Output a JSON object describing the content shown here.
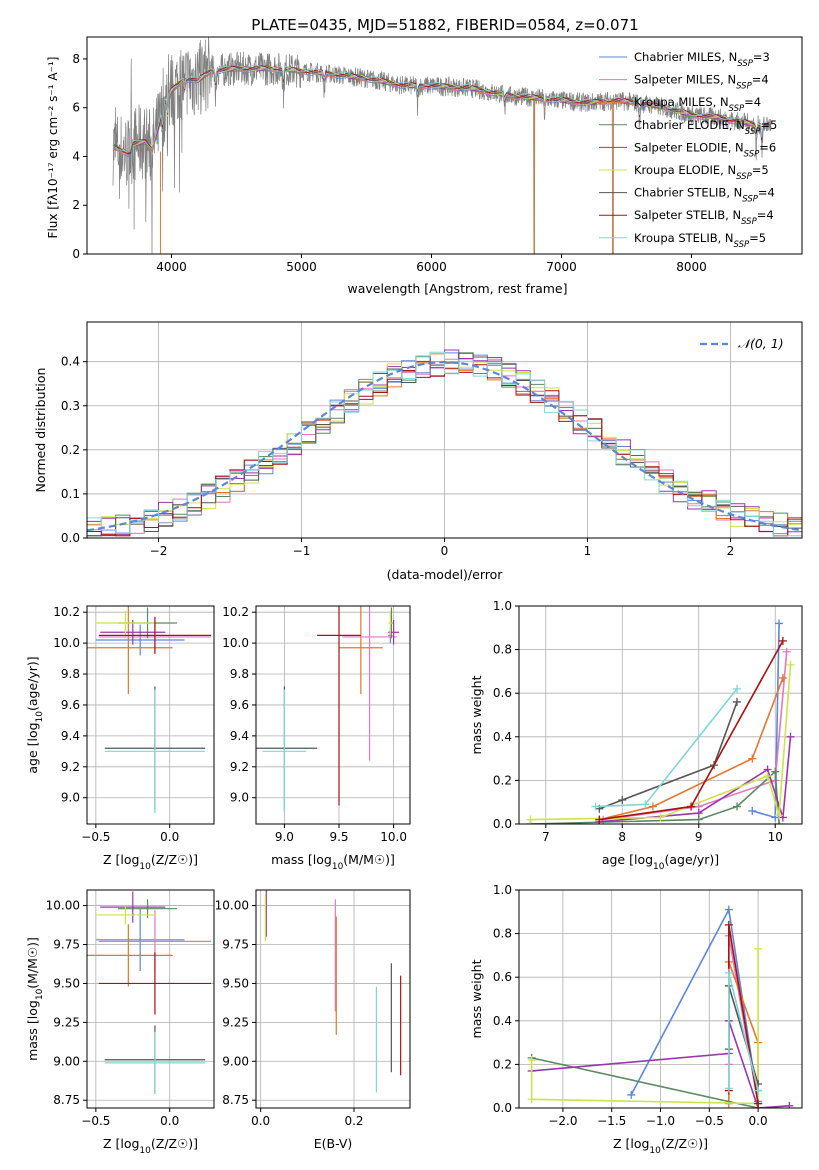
{
  "figure": {
    "title": "PLATE=0435, MJD=51882, FIBERID=0584, z=0.071"
  },
  "colors": {
    "chabrier_miles": "#5b86dc",
    "salpeter_miles": "#e377c2",
    "kroupa_miles": "#e6762a",
    "chabrier_elodie": "#5a8a60",
    "salpeter_elodie": "#9a36ad",
    "kroupa_elodie": "#cce34c",
    "chabrier_stelib": "#555555",
    "salpeter_stelib": "#aa1111",
    "kroupa_stelib": "#80d6d6",
    "data_spectrum": "#808080",
    "normal_curve": "#5b86dc",
    "grid": "#b0b0b0"
  },
  "chart_data": [
    {
      "id": "spectrum",
      "type": "line",
      "title": "PLATE=0435, MJD=51882, FIBERID=0584, z=0.071",
      "xlabel": "wavelength [Angstrom, rest frame]",
      "ylabel": "Flux [fλ10⁻¹⁷ erg cm⁻² s⁻¹ A⁻¹]",
      "xlim": [
        3350,
        8850
      ],
      "ylim": [
        0,
        8.9
      ],
      "xticks": [
        4000,
        5000,
        6000,
        7000,
        8000
      ],
      "yticks": [
        0,
        2,
        4,
        6,
        8
      ],
      "grid": false,
      "legend_position": "right",
      "continuum_x": [
        3550,
        3600,
        3680,
        3700,
        3800,
        3850,
        3900,
        3950,
        4000,
        4100,
        4200,
        4300,
        4500,
        4800,
        5000,
        5200,
        5500,
        5800,
        6000,
        6300,
        6600,
        6800,
        7000,
        7200,
        7400,
        7600,
        7800,
        8000,
        8200,
        8400,
        8500,
        8600
      ],
      "continuum_y": [
        4.4,
        4.3,
        4.1,
        4.5,
        4.6,
        4.3,
        5.2,
        6.2,
        6.7,
        7.2,
        7.1,
        7.5,
        7.6,
        7.6,
        7.5,
        7.4,
        7.2,
        6.9,
        6.9,
        6.8,
        6.5,
        6.4,
        6.3,
        6.2,
        6.3,
        6.2,
        6.0,
        5.7,
        5.6,
        5.4,
        5.3,
        5.3
      ],
      "series": [
        {
          "name": "Chabrier MILES, N_SSP=3",
          "label_main": "Chabrier MILES, N",
          "label_sub": "SSP",
          "label_tail": "=3",
          "color_key": "chabrier_miles"
        },
        {
          "name": "Salpeter MILES, N_SSP=4",
          "label_main": "Salpeter MILES, N",
          "label_sub": "SSP",
          "label_tail": "=4",
          "color_key": "salpeter_miles"
        },
        {
          "name": "Kroupa MILES, N_SSP=4",
          "label_main": "Kroupa MILES, N",
          "label_sub": "SSP",
          "label_tail": "=4",
          "color_key": "kroupa_miles"
        },
        {
          "name": "Chabrier ELODIE, N_SSP=5",
          "label_main": "Chabrier ELODIE, N",
          "label_sub": "SSP",
          "label_tail": "=5",
          "color_key": "chabrier_elodie"
        },
        {
          "name": "Salpeter ELODIE, N_SSP=6",
          "label_main": "Salpeter ELODIE, N",
          "label_sub": "SSP",
          "label_tail": "=6",
          "color_key": "salpeter_elodie"
        },
        {
          "name": "Kroupa ELODIE, N_SSP=5",
          "label_main": "Kroupa ELODIE, N",
          "label_sub": "SSP",
          "label_tail": "=5",
          "color_key": "kroupa_elodie"
        },
        {
          "name": "Chabrier STELIB, N_SSP=4",
          "label_main": "Chabrier STELIB, N",
          "label_sub": "SSP",
          "label_tail": "=4",
          "color_key": "chabrier_stelib"
        },
        {
          "name": "Salpeter STELIB, N_SSP=4",
          "label_main": "Salpeter STELIB, N",
          "label_sub": "SSP",
          "label_tail": "=4",
          "color_key": "salpeter_stelib"
        },
        {
          "name": "Kroupa STELIB, N_SSP=5",
          "label_main": "Kroupa STELIB, N",
          "label_sub": "SSP",
          "label_tail": "=5",
          "color_key": "kroupa_stelib"
        }
      ]
    },
    {
      "id": "residuals",
      "type": "line",
      "xlabel": "(data-model)/error",
      "ylabel": "Normed distribution",
      "xlim": [
        -2.5,
        2.5
      ],
      "ylim": [
        0,
        0.49
      ],
      "xticks": [
        -2,
        -1,
        0,
        1,
        2
      ],
      "yticks": [
        0.0,
        0.1,
        0.2,
        0.3,
        0.4
      ],
      "grid": true,
      "legend_position": "top-right",
      "normal_label": "𝒩(0, 1)",
      "bin_width": 0.1,
      "series_count": 9
    },
    {
      "id": "age_vs_Z",
      "type": "scatter",
      "xlabel": "Z [log10(Z/Z☉)]",
      "ylabel": "age  [log10(age/yr)]",
      "xlim": [
        -0.56,
        0.3
      ],
      "ylim": [
        8.83,
        10.24
      ],
      "xticks": [
        -0.5,
        0.0
      ],
      "yticks": [
        9.0,
        9.2,
        9.4,
        9.6,
        9.8,
        10.0,
        10.2
      ],
      "grid": true,
      "points": [
        {
          "color_key": "chabrier_miles",
          "x": -0.2,
          "xerr": 0.3,
          "y": 10.02,
          "yerr": 0.1
        },
        {
          "color_key": "salpeter_miles",
          "x": -0.1,
          "xerr": 0.38,
          "y": 10.04,
          "yerr": 0.1
        },
        {
          "color_key": "kroupa_miles",
          "x": -0.28,
          "xerr": 0.3,
          "y": 9.97,
          "yerr": 0.3
        },
        {
          "color_key": "chabrier_elodie",
          "x": -0.15,
          "xerr": 0.2,
          "y": 10.13,
          "yerr": 0.1
        },
        {
          "color_key": "salpeter_elodie",
          "x": -0.25,
          "xerr": 0.22,
          "y": 10.07,
          "yerr": 0.08
        },
        {
          "color_key": "kroupa_elodie",
          "x": -0.3,
          "xerr": 0.2,
          "y": 10.13,
          "yerr": 0.08
        },
        {
          "color_key": "chabrier_stelib",
          "x": -0.1,
          "xerr": 0.34,
          "y": 9.32,
          "yerr": 0.4
        },
        {
          "color_key": "salpeter_stelib",
          "x": -0.1,
          "xerr": 0.38,
          "y": 10.05,
          "yerr": 0.12
        },
        {
          "color_key": "kroupa_stelib",
          "x": -0.1,
          "xerr": 0.34,
          "y": 9.3,
          "yerr": 0.4
        }
      ]
    },
    {
      "id": "age_vs_mass",
      "type": "scatter",
      "xlabel": "mass [log10(M/M☉)]",
      "xlim": [
        8.74,
        10.15
      ],
      "ylim": [
        8.83,
        10.24
      ],
      "xticks": [
        9.0,
        9.5,
        10.0
      ],
      "yticks": [
        9.0,
        9.2,
        9.4,
        9.6,
        9.8,
        10.0,
        10.2
      ],
      "grid": true,
      "points": [
        {
          "color_key": "chabrier_miles",
          "x": 9.97,
          "xerr": 0.02,
          "y": 10.05,
          "yerr": 0.05
        },
        {
          "color_key": "salpeter_miles",
          "x": 9.78,
          "xerr": 0.25,
          "y": 10.04,
          "yerr": 0.8
        },
        {
          "color_key": "kroupa_miles",
          "x": 9.7,
          "xerr": 0.2,
          "y": 9.97,
          "yerr": 0.3
        },
        {
          "color_key": "chabrier_elodie",
          "x": 9.98,
          "xerr": 0.02,
          "y": 10.13,
          "yerr": 0.1
        },
        {
          "color_key": "salpeter_elodie",
          "x": 10.0,
          "xerr": 0.05,
          "y": 10.07,
          "yerr": 0.08
        },
        {
          "color_key": "kroupa_elodie",
          "x": 9.97,
          "xerr": 0.02,
          "y": 10.13,
          "yerr": 0.08
        },
        {
          "color_key": "chabrier_stelib",
          "x": 9.0,
          "xerr": 0.3,
          "y": 9.32,
          "yerr": 0.4
        },
        {
          "color_key": "salpeter_stelib",
          "x": 9.5,
          "xerr": 0.2,
          "y": 10.05,
          "yerr": 1.1
        },
        {
          "color_key": "kroupa_stelib",
          "x": 9.0,
          "xerr": 0.2,
          "y": 9.3,
          "yerr": 0.4
        }
      ]
    },
    {
      "id": "weight_vs_age",
      "type": "line",
      "xlabel": "age  [log10(age/yr)]",
      "ylabel": "mass weight",
      "xlim": [
        6.65,
        10.35
      ],
      "ylim": [
        0,
        1.0
      ],
      "xticks": [
        7,
        8,
        9,
        10
      ],
      "yticks": [
        0.0,
        0.2,
        0.4,
        0.6,
        0.8,
        1.0
      ],
      "grid": true,
      "series": [
        {
          "color_key": "chabrier_miles",
          "x": [
            9.7,
            10.0,
            10.05
          ],
          "y": [
            0.06,
            0.03,
            0.92
          ]
        },
        {
          "color_key": "salpeter_miles",
          "x": [
            7.75,
            9.0,
            10.0,
            10.15
          ],
          "y": [
            0.02,
            0.08,
            0.2,
            0.79
          ]
        },
        {
          "color_key": "kroupa_miles",
          "x": [
            7.7,
            8.4,
            9.7,
            10.1
          ],
          "y": [
            0.02,
            0.08,
            0.3,
            0.67
          ]
        },
        {
          "color_key": "chabrier_elodie",
          "x": [
            6.8,
            9.0,
            9.5,
            10.0,
            10.05
          ],
          "y": [
            0.0,
            0.02,
            0.08,
            0.24,
            0.0
          ]
        },
        {
          "color_key": "salpeter_elodie",
          "x": [
            7.7,
            9.0,
            9.9,
            10.1,
            10.2
          ],
          "y": [
            0.01,
            0.05,
            0.25,
            0.03,
            0.4
          ]
        },
        {
          "color_key": "kroupa_elodie",
          "x": [
            6.8,
            8.5,
            9.9,
            10.05,
            10.2
          ],
          "y": [
            0.02,
            0.03,
            0.22,
            0.04,
            0.73
          ]
        },
        {
          "color_key": "chabrier_stelib",
          "x": [
            7.7,
            8.0,
            9.2,
            9.5
          ],
          "y": [
            0.07,
            0.11,
            0.27,
            0.56
          ]
        },
        {
          "color_key": "salpeter_stelib",
          "x": [
            7.7,
            8.9,
            10.1
          ],
          "y": [
            0.02,
            0.08,
            0.84
          ]
        },
        {
          "color_key": "kroupa_stelib",
          "x": [
            7.65,
            8.3,
            9.5
          ],
          "y": [
            0.08,
            0.09,
            0.62
          ]
        }
      ]
    },
    {
      "id": "mass_vs_Z",
      "type": "scatter",
      "xlabel": "Z [log10(Z/Z☉)]",
      "ylabel": "mass [log10(M/M☉)]",
      "xlim": [
        -0.56,
        0.3
      ],
      "ylim": [
        8.7,
        10.1
      ],
      "xticks": [
        -0.5,
        0.0
      ],
      "yticks": [
        8.75,
        9.0,
        9.25,
        9.5,
        9.75,
        10.0
      ],
      "grid": true,
      "points": [
        {
          "color_key": "chabrier_miles",
          "x": -0.2,
          "xerr": 0.3,
          "y": 9.78,
          "yerr": 0.2
        },
        {
          "color_key": "salpeter_miles",
          "x": -0.1,
          "xerr": 0.38,
          "y": 9.77,
          "yerr": 0.2
        },
        {
          "color_key": "kroupa_miles",
          "x": -0.28,
          "xerr": 0.3,
          "y": 9.68,
          "yerr": 0.2
        },
        {
          "color_key": "chabrier_elodie",
          "x": -0.15,
          "xerr": 0.2,
          "y": 9.98,
          "yerr": 0.06
        },
        {
          "color_key": "salpeter_elodie",
          "x": -0.25,
          "xerr": 0.22,
          "y": 9.99,
          "yerr": 0.1
        },
        {
          "color_key": "kroupa_elodie",
          "x": -0.3,
          "xerr": 0.2,
          "y": 9.94,
          "yerr": 0.06
        },
        {
          "color_key": "chabrier_stelib",
          "x": -0.1,
          "xerr": 0.34,
          "y": 9.01,
          "yerr": 0.22
        },
        {
          "color_key": "salpeter_stelib",
          "x": -0.1,
          "xerr": 0.38,
          "y": 9.5,
          "yerr": 0.2
        },
        {
          "color_key": "kroupa_stelib",
          "x": -0.1,
          "xerr": 0.34,
          "y": 8.99,
          "yerr": 0.2
        }
      ]
    },
    {
      "id": "mass_vs_ebv",
      "type": "scatter",
      "xlabel": "E(B-V)",
      "xlim": [
        -0.01,
        0.32
      ],
      "ylim": [
        8.7,
        10.1
      ],
      "xticks": [
        0.0,
        0.2
      ],
      "yticks": [
        8.75,
        9.0,
        9.25,
        9.5,
        9.75,
        10.0
      ],
      "grid": true,
      "points": [
        {
          "color_key": "salpeter_elodie",
          "x": 0.012,
          "y": 9.95,
          "yerr": 0.15
        },
        {
          "color_key": "kroupa_elodie",
          "x": 0.01,
          "y": 9.92,
          "yerr": 0.15
        },
        {
          "color_key": "salpeter_miles",
          "x": 0.16,
          "y": 9.68,
          "yerr": 0.36
        },
        {
          "color_key": "kroupa_miles",
          "x": 0.162,
          "y": 9.55,
          "yerr": 0.38
        },
        {
          "color_key": "kroupa_stelib",
          "x": 0.248,
          "y": 9.14,
          "yerr": 0.34
        },
        {
          "color_key": "chabrier_stelib",
          "x": 0.28,
          "y": 9.28,
          "yerr": 0.35
        },
        {
          "color_key": "salpeter_stelib",
          "x": 0.3,
          "y": 9.23,
          "yerr": 0.32
        }
      ]
    },
    {
      "id": "weight_vs_Z",
      "type": "line",
      "xlabel": "Z [log10(Z/Z☉)]",
      "ylabel": "mass weight",
      "xlim": [
        -2.45,
        0.45
      ],
      "ylim": [
        0,
        1.0
      ],
      "xticks": [
        -2.0,
        -1.5,
        -1.0,
        -0.5,
        0.0
      ],
      "yticks": [
        0.0,
        0.2,
        0.4,
        0.6,
        0.8,
        1.0
      ],
      "grid": true,
      "series": [
        {
          "color_key": "chabrier_miles",
          "x": [
            -1.3,
            -0.3,
            0.0
          ],
          "y": [
            0.06,
            0.91,
            0.03
          ]
        },
        {
          "color_key": "salpeter_miles",
          "x": [
            -0.3,
            -0.3,
            0.0
          ],
          "y": [
            0.2,
            0.79,
            0.02
          ]
        },
        {
          "color_key": "kroupa_miles",
          "x": [
            -0.3,
            -0.3,
            0.0,
            0.0
          ],
          "y": [
            0.02,
            0.67,
            0.3,
            0.08
          ]
        },
        {
          "color_key": "chabrier_elodie",
          "x": [
            -2.32,
            0.0,
            0.0
          ],
          "y": [
            0.23,
            0.0,
            0.02
          ]
        },
        {
          "color_key": "salpeter_elodie",
          "x": [
            -2.32,
            -0.3,
            -0.3,
            0.0,
            0.32
          ],
          "y": [
            0.17,
            0.25,
            0.4,
            0.0,
            0.01
          ]
        },
        {
          "color_key": "kroupa_elodie",
          "x": [
            -2.32,
            -2.32,
            0.0,
            0.0
          ],
          "y": [
            0.22,
            0.04,
            0.02,
            0.73
          ]
        },
        {
          "color_key": "chabrier_stelib",
          "x": [
            -0.3,
            -0.3,
            0.0
          ],
          "y": [
            0.27,
            0.56,
            0.11
          ]
        },
        {
          "color_key": "salpeter_stelib",
          "x": [
            -0.3,
            -0.3,
            0.0
          ],
          "y": [
            0.08,
            0.84,
            0.02
          ]
        },
        {
          "color_key": "kroupa_stelib",
          "x": [
            -0.3,
            -0.3,
            0.0
          ],
          "y": [
            0.09,
            0.62,
            0.08
          ]
        }
      ]
    }
  ]
}
